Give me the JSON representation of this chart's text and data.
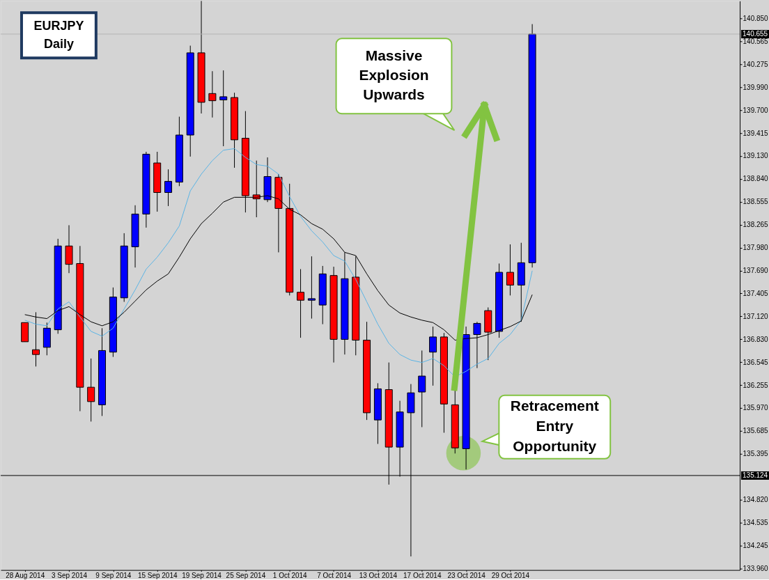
{
  "chart_data": {
    "type": "candlestick",
    "title": "EURJPY Daily",
    "categories": [
      "28 Aug 2014",
      null,
      null,
      null,
      "3 Sep 2014",
      null,
      null,
      null,
      "9 Sep 2014",
      null,
      null,
      null,
      "15 Sep 2014",
      null,
      null,
      null,
      "19 Sep 2014",
      null,
      null,
      null,
      "25 Sep 2014",
      null,
      null,
      null,
      "1 Oct 2014",
      null,
      null,
      null,
      "7 Oct 2014",
      null,
      null,
      null,
      "13 Oct 2014",
      null,
      null,
      null,
      "17 Oct 2014",
      null,
      null,
      null,
      "23 Oct 2014",
      null,
      null,
      null,
      "29 Oct 2014",
      null,
      null
    ],
    "ohlc": [
      [
        137.04,
        137.04,
        136.8,
        136.8
      ],
      [
        136.7,
        137.17,
        136.49,
        136.64
      ],
      [
        136.73,
        137.04,
        136.63,
        136.97
      ],
      [
        136.95,
        138.09,
        136.9,
        138.0
      ],
      [
        138.0,
        138.26,
        137.66,
        137.77
      ],
      [
        137.78,
        138.0,
        135.93,
        136.23
      ],
      [
        136.23,
        136.59,
        135.8,
        136.05
      ],
      [
        136.01,
        136.97,
        135.87,
        136.69
      ],
      [
        136.67,
        137.48,
        136.61,
        137.36
      ],
      [
        137.35,
        138.16,
        137.3,
        138.0
      ],
      [
        137.99,
        138.51,
        137.73,
        138.4
      ],
      [
        138.4,
        139.18,
        138.23,
        139.15
      ],
      [
        139.04,
        139.18,
        138.43,
        138.67
      ],
      [
        138.67,
        138.96,
        138.5,
        138.81
      ],
      [
        138.8,
        139.62,
        138.75,
        139.39
      ],
      [
        139.39,
        140.51,
        139.12,
        140.42
      ],
      [
        140.42,
        141.07,
        139.66,
        139.8
      ],
      [
        139.91,
        140.19,
        139.61,
        139.82
      ],
      [
        139.83,
        140.2,
        139.25,
        139.87
      ],
      [
        139.86,
        139.92,
        138.98,
        139.33
      ],
      [
        139.35,
        139.69,
        138.42,
        138.63
      ],
      [
        138.64,
        139.07,
        138.36,
        138.59
      ],
      [
        138.58,
        139.11,
        138.55,
        138.87
      ],
      [
        138.86,
        138.9,
        137.92,
        138.47
      ],
      [
        138.47,
        138.78,
        137.38,
        137.42
      ],
      [
        137.42,
        137.71,
        136.85,
        137.32
      ],
      [
        137.32,
        137.87,
        137.09,
        137.34
      ],
      [
        137.26,
        137.75,
        137.02,
        137.65
      ],
      [
        137.63,
        137.74,
        136.54,
        136.83
      ],
      [
        136.83,
        137.92,
        136.64,
        137.59
      ],
      [
        137.61,
        137.87,
        136.63,
        136.82
      ],
      [
        136.82,
        137.05,
        135.82,
        135.91
      ],
      [
        135.82,
        136.28,
        135.52,
        136.21
      ],
      [
        136.2,
        136.54,
        135.01,
        135.48
      ],
      [
        135.48,
        136.06,
        135.11,
        135.92
      ],
      [
        135.91,
        136.27,
        134.11,
        136.16
      ],
      [
        136.17,
        136.69,
        135.73,
        136.37
      ],
      [
        136.67,
        136.99,
        136.25,
        136.86
      ],
      [
        136.86,
        136.91,
        135.66,
        136.02
      ],
      [
        136.01,
        136.19,
        135.4,
        135.47
      ],
      [
        135.46,
        136.99,
        135.2,
        136.89
      ],
      [
        136.89,
        137.05,
        136.47,
        137.03
      ],
      [
        137.19,
        137.23,
        136.57,
        136.92
      ],
      [
        136.93,
        137.78,
        136.85,
        137.67
      ],
      [
        137.67,
        138.02,
        137.38,
        137.51
      ],
      [
        137.51,
        138.04,
        137.05,
        137.79
      ],
      [
        137.79,
        140.78,
        137.73,
        140.655
      ]
    ],
    "colors": [
      "#ff0000",
      "#ff0000",
      "#0000ff",
      "#0000ff",
      "#ff0000",
      "#ff0000",
      "#ff0000",
      "#0000ff",
      "#0000ff",
      "#0000ff",
      "#0000ff",
      "#0000ff",
      "#ff0000",
      "#0000ff",
      "#0000ff",
      "#0000ff",
      "#ff0000",
      "#ff0000",
      "#0000ff",
      "#ff0000",
      "#ff0000",
      "#ff0000",
      "#0000ff",
      "#ff0000",
      "#ff0000",
      "#ff0000",
      "#0000ff",
      "#0000ff",
      "#ff0000",
      "#0000ff",
      "#ff0000",
      "#ff0000",
      "#0000ff",
      "#ff0000",
      "#0000ff",
      "#0000ff",
      "#0000ff",
      "#0000ff",
      "#ff0000",
      "#ff0000",
      "#0000ff",
      "#0000ff",
      "#ff0000",
      "#0000ff",
      "#ff0000",
      "#0000ff",
      "#0000ff"
    ],
    "series": [
      {
        "type": "line",
        "color": "#5ab4e5",
        "values": [
          137.07,
          137.02,
          137.0,
          137.21,
          137.3,
          137.11,
          136.93,
          136.87,
          136.97,
          137.21,
          137.45,
          137.71,
          137.86,
          138.04,
          138.25,
          138.69,
          138.9,
          139.07,
          139.2,
          139.22,
          139.11,
          139.02,
          139.0,
          138.9,
          138.62,
          138.37,
          138.19,
          138.05,
          137.88,
          137.81,
          137.58,
          137.3,
          137.02,
          136.78,
          136.64,
          136.57,
          136.54,
          136.59,
          136.5,
          136.36,
          136.43,
          136.52,
          136.59,
          136.78,
          136.89,
          137.07,
          137.69
        ]
      },
      {
        "type": "line",
        "color": "#000000",
        "values": [
          137.14,
          137.11,
          137.09,
          137.19,
          137.24,
          137.14,
          137.05,
          137.0,
          137.05,
          137.17,
          137.31,
          137.45,
          137.56,
          137.65,
          137.86,
          138.09,
          138.28,
          138.41,
          138.55,
          138.61,
          138.61,
          138.61,
          138.63,
          138.59,
          138.46,
          138.39,
          138.28,
          138.21,
          138.09,
          137.92,
          137.88,
          137.65,
          137.44,
          137.26,
          137.16,
          137.11,
          137.07,
          137.04,
          136.95,
          136.82,
          136.84,
          136.85,
          136.89,
          136.94,
          136.99,
          137.06,
          137.39
        ]
      }
    ],
    "ylim": [
      133.94,
      141.07
    ],
    "yticks": [
      {
        "value": 140.85,
        "label": "140.850"
      },
      140.565,
      140.275,
      {
        "value": 139.99,
        "label": "139.990"
      },
      {
        "value": 139.7,
        "label": "139.700"
      },
      139.415,
      {
        "value": 139.13,
        "label": "139.130"
      },
      {
        "value": 138.84,
        "label": "138.840"
      },
      138.555,
      138.265,
      {
        "value": 137.98,
        "label": "137.980"
      },
      {
        "value": 137.69,
        "label": "137.690"
      },
      137.405,
      {
        "value": 137.12,
        "label": "137.120"
      },
      {
        "value": 136.83,
        "label": "136.830"
      },
      136.545,
      136.255,
      {
        "value": 135.97,
        "label": "135.970"
      },
      135.685,
      135.395,
      {
        "value": 134.82,
        "label": "134.820"
      },
      134.535,
      134.245,
      {
        "value": 133.96,
        "label": "133.960"
      }
    ],
    "ref_lines": [
      {
        "axis": "y",
        "value": 140.655,
        "label": "140.655",
        "color": "#b4b4b4"
      },
      {
        "axis": "y",
        "value": 135.124,
        "label": "135.124",
        "color": "#000000"
      }
    ],
    "annotations": [
      "Massive Explosion Upwards",
      "Retracement Entry Opportunity"
    ]
  }
}
